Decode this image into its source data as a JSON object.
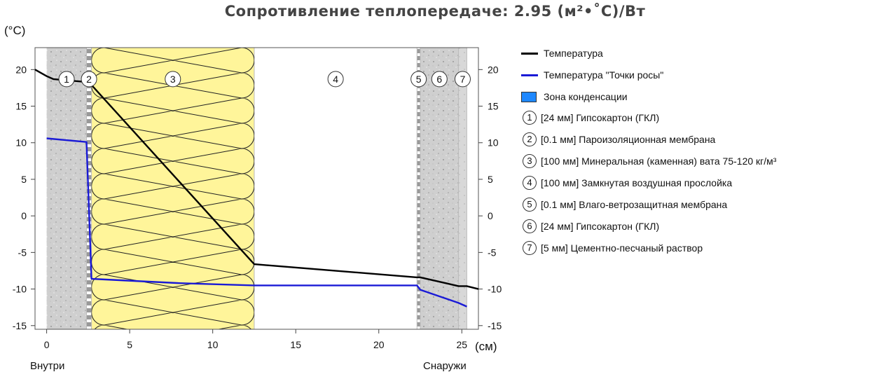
{
  "title": "Сопротивление теплопередаче: 2.95 (м²•˚С)/Вт",
  "chart_data": {
    "type": "line",
    "title": "Сопротивление теплопередаче: 2.95 (м²•˚С)/Вт",
    "ylabel": "(°C)",
    "xlabel": "(см)",
    "xlim": [
      -0.7,
      26
    ],
    "ylim": [
      -15.5,
      23
    ],
    "x_ticks": [
      0,
      5,
      10,
      15,
      20,
      25
    ],
    "y_ticks": [
      20,
      15,
      10,
      5,
      0,
      -5,
      -10,
      -15
    ],
    "y_tick_labels": [
      "20",
      "15",
      "10",
      "5",
      "0",
      "-5",
      "-10",
      "-15"
    ],
    "inside_label": "Внутри",
    "outside_label": "Снаружи",
    "grid": false,
    "legend_position": "right",
    "layers": [
      {
        "num": "1",
        "x0": 0,
        "x1": 2.4,
        "fill": "gypsum"
      },
      {
        "num": "2",
        "x0": 2.4,
        "x1": 2.7,
        "fill": "membrane"
      },
      {
        "num": "3",
        "x0": 2.7,
        "x1": 12.5,
        "fill": "wool"
      },
      {
        "num": "4",
        "x0": 12.5,
        "x1": 22.3,
        "fill": "air"
      },
      {
        "num": "5",
        "x0": 22.3,
        "x1": 22.5,
        "fill": "membrane"
      },
      {
        "num": "6",
        "x0": 22.5,
        "x1": 24.8,
        "fill": "gypsum"
      },
      {
        "num": "7",
        "x0": 24.8,
        "x1": 25.3,
        "fill": "mortar"
      }
    ],
    "series": [
      {
        "name": "Температура",
        "color": "#000000",
        "x": [
          -0.7,
          0,
          0.4,
          2.4,
          2.7,
          12.5,
          22.3,
          22.5,
          24.8,
          25.3,
          26
        ],
        "y": [
          20.0,
          19.1,
          18.7,
          18.3,
          17.9,
          -6.6,
          -8.4,
          -8.4,
          -9.6,
          -9.6,
          -10.0
        ]
      },
      {
        "name": "Температура \"Точки росы\"",
        "color": "#1a1ad6",
        "x": [
          0,
          2.4,
          2.7,
          8,
          12.5,
          22.3,
          22.5,
          24.8,
          25.3
        ],
        "y": [
          10.6,
          10.1,
          -8.6,
          -9.2,
          -9.5,
          -9.5,
          -10.1,
          -11.9,
          -12.4
        ]
      }
    ]
  },
  "legend": {
    "temperature": "Температура",
    "dew_point": "Температура \"Точки росы\"",
    "condensation": "Зона конденсации",
    "condensation_color": "#1e88ff",
    "layers": [
      {
        "num": "1",
        "text": "[24 мм] Гипсокартон (ГКЛ)"
      },
      {
        "num": "2",
        "text": "[0.1 мм] Пароизоляционная мембрана"
      },
      {
        "num": "3",
        "text": "[100 мм] Минеральная (каменная) вата 75-120 кг/м³"
      },
      {
        "num": "4",
        "text": "[100 мм] Замкнутая воздушная прослойка"
      },
      {
        "num": "5",
        "text": "[0.1 мм] Влаго-ветрозащитная мембрана"
      },
      {
        "num": "6",
        "text": "[24 мм] Гипсокартон (ГКЛ)"
      },
      {
        "num": "7",
        "text": "[5 мм] Цементно-песчаный раствор"
      }
    ]
  }
}
